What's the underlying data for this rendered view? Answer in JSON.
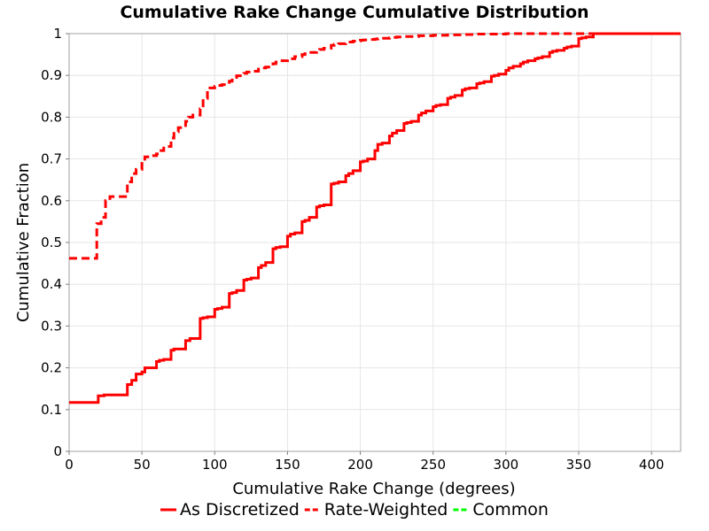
{
  "chart_data": {
    "type": "line",
    "title": "Cumulative Rake Change Cumulative Distribution",
    "xlabel": "Cumulative Rake Change (degrees)",
    "ylabel": "Cumulative Fraction",
    "xlim": [
      0,
      420
    ],
    "ylim": [
      0,
      1
    ],
    "x_ticks": [
      "0",
      "50",
      "100",
      "150",
      "200",
      "250",
      "300",
      "350",
      "400"
    ],
    "y_ticks": [
      "0",
      "0.1",
      "0.2",
      "0.3",
      "0.4",
      "0.5",
      "0.6",
      "0.7",
      "0.8",
      "0.9",
      "1"
    ],
    "grid": true,
    "legend_position": "bottom",
    "series": [
      {
        "name": "As Discretized",
        "color": "#ff0000",
        "style": "solid",
        "step": true,
        "x": [
          0,
          18,
          20,
          24,
          40,
          43,
          46,
          50,
          52,
          55,
          60,
          62,
          65,
          70,
          72,
          75,
          80,
          83,
          86,
          90,
          92,
          95,
          100,
          102,
          105,
          110,
          112,
          115,
          120,
          122,
          125,
          130,
          132,
          135,
          140,
          142,
          145,
          150,
          152,
          155,
          160,
          162,
          165,
          170,
          172,
          175,
          180,
          182,
          185,
          190,
          192,
          195,
          200,
          202,
          205,
          210,
          212,
          215,
          220,
          222,
          225,
          230,
          232,
          235,
          240,
          242,
          245,
          250,
          252,
          255,
          260,
          262,
          265,
          270,
          272,
          275,
          280,
          282,
          285,
          290,
          292,
          295,
          300,
          302,
          305,
          310,
          312,
          315,
          320,
          322,
          325,
          330,
          332,
          335,
          340,
          342,
          345,
          350,
          352,
          355,
          360,
          420
        ],
        "values": [
          0.117,
          0.117,
          0.133,
          0.135,
          0.16,
          0.17,
          0.185,
          0.19,
          0.2,
          0.2,
          0.215,
          0.218,
          0.22,
          0.242,
          0.245,
          0.245,
          0.265,
          0.27,
          0.27,
          0.318,
          0.32,
          0.322,
          0.34,
          0.342,
          0.345,
          0.378,
          0.38,
          0.385,
          0.41,
          0.412,
          0.415,
          0.44,
          0.445,
          0.452,
          0.485,
          0.488,
          0.49,
          0.515,
          0.52,
          0.523,
          0.55,
          0.553,
          0.56,
          0.585,
          0.588,
          0.59,
          0.64,
          0.642,
          0.645,
          0.66,
          0.665,
          0.672,
          0.693,
          0.695,
          0.7,
          0.72,
          0.735,
          0.738,
          0.755,
          0.762,
          0.768,
          0.785,
          0.787,
          0.79,
          0.805,
          0.81,
          0.815,
          0.825,
          0.828,
          0.83,
          0.845,
          0.848,
          0.852,
          0.865,
          0.868,
          0.87,
          0.88,
          0.882,
          0.885,
          0.898,
          0.9,
          0.903,
          0.912,
          0.918,
          0.922,
          0.928,
          0.932,
          0.935,
          0.94,
          0.942,
          0.945,
          0.955,
          0.958,
          0.96,
          0.965,
          0.968,
          0.97,
          0.988,
          0.99,
          0.992,
          1.0,
          1.0
        ]
      },
      {
        "name": "Rate-Weighted",
        "color": "#ff0000",
        "style": "dashed",
        "step": true,
        "x": [
          0,
          18,
          19,
          22,
          25,
          28,
          38,
          40,
          43,
          46,
          50,
          52,
          55,
          60,
          62,
          65,
          70,
          72,
          75,
          80,
          82,
          85,
          90,
          92,
          95,
          100,
          102,
          105,
          110,
          112,
          115,
          120,
          122,
          125,
          130,
          132,
          135,
          140,
          142,
          145,
          150,
          152,
          155,
          160,
          162,
          165,
          170,
          172,
          175,
          180,
          182,
          185,
          190,
          192,
          195,
          200,
          202,
          205,
          210,
          212,
          215,
          220,
          222,
          225,
          230,
          240,
          250,
          260,
          270,
          280,
          290,
          300,
          310,
          320,
          330,
          340,
          350,
          360,
          420
        ],
        "values": [
          0.462,
          0.462,
          0.545,
          0.56,
          0.6,
          0.61,
          0.61,
          0.645,
          0.665,
          0.675,
          0.695,
          0.705,
          0.708,
          0.712,
          0.72,
          0.73,
          0.75,
          0.765,
          0.775,
          0.79,
          0.8,
          0.805,
          0.82,
          0.845,
          0.87,
          0.874,
          0.876,
          0.878,
          0.886,
          0.895,
          0.899,
          0.905,
          0.908,
          0.91,
          0.915,
          0.918,
          0.92,
          0.928,
          0.932,
          0.935,
          0.938,
          0.94,
          0.945,
          0.95,
          0.952,
          0.955,
          0.96,
          0.962,
          0.965,
          0.972,
          0.974,
          0.976,
          0.978,
          0.98,
          0.982,
          0.984,
          0.985,
          0.986,
          0.987,
          0.988,
          0.989,
          0.99,
          0.991,
          0.992,
          0.993,
          0.995,
          0.996,
          0.997,
          0.998,
          0.999,
          0.999,
          1.0,
          1.0,
          1.0,
          1.0,
          1.0,
          1.0,
          1.0,
          1.0
        ]
      },
      {
        "name": "Common",
        "color": "#00ff00",
        "style": "dashed",
        "step": true,
        "x": [],
        "values": []
      }
    ]
  }
}
